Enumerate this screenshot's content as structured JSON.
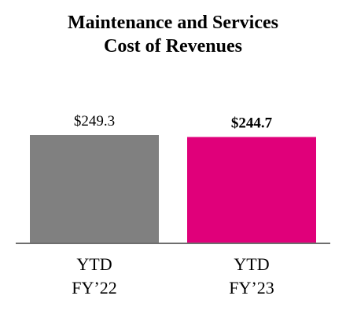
{
  "chart_data": {
    "type": "bar",
    "title_lines": [
      "Maintenance and Services",
      "Cost of Revenues"
    ],
    "categories": [
      [
        "YTD",
        "FY’22"
      ],
      [
        "YTD",
        "FY’23"
      ]
    ],
    "values": [
      249.3,
      244.7
    ],
    "value_labels": [
      "$249.3",
      "$244.7"
    ],
    "value_label_bold": [
      false,
      true
    ],
    "colors": [
      "#808080",
      "#E0007A"
    ],
    "baseline_color": "#6E6E6E",
    "ylim": [
      0,
      249.3
    ],
    "grid": false,
    "legend": "none"
  }
}
